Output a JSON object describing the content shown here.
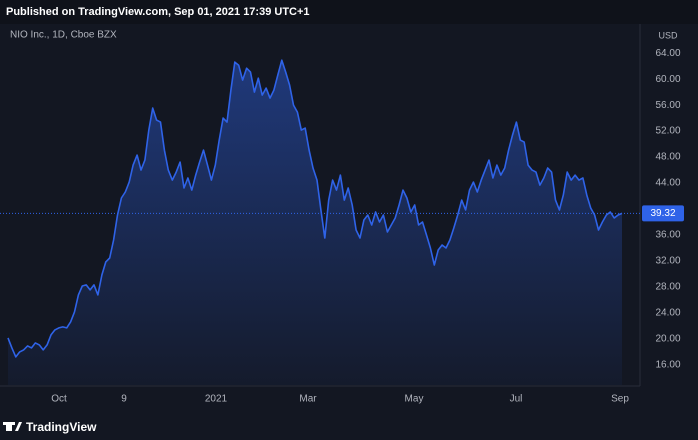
{
  "header": "Published on TradingView.com, Sep 01, 2021 17:39 UTC+1",
  "footer": "TradingView",
  "chart_data": {
    "type": "area",
    "title": "NIO Inc., 1D, Cboe BZX",
    "currency": "USD",
    "color": "#2f63e8",
    "grid": false,
    "ylim": [
      12.9,
      68.8
    ],
    "yticks": [
      {
        "value": 16,
        "label": "16.00"
      },
      {
        "value": 20,
        "label": "20.00"
      },
      {
        "value": 24,
        "label": "24.00"
      },
      {
        "value": 28,
        "label": "28.00"
      },
      {
        "value": 32,
        "label": "32.00"
      },
      {
        "value": 36,
        "label": "36.00"
      },
      {
        "value": 44,
        "label": "44.00"
      },
      {
        "value": 48,
        "label": "48.00"
      },
      {
        "value": 52,
        "label": "52.00"
      },
      {
        "value": 56,
        "label": "56.00"
      },
      {
        "value": 60,
        "label": "60.00"
      },
      {
        "value": 64,
        "label": "64.00"
      }
    ],
    "x_labels": [
      "Oct",
      "9",
      "2021",
      "Mar",
      "May",
      "Jul",
      "Sep"
    ],
    "values": [
      20.15,
      18.62,
      17.23,
      18.0,
      18.31,
      18.92,
      18.62,
      19.38,
      19.08,
      18.31,
      19.08,
      20.62,
      21.38,
      21.69,
      21.85,
      21.69,
      22.62,
      24.15,
      26.77,
      28.15,
      28.31,
      27.54,
      28.31,
      26.77,
      29.85,
      31.85,
      32.46,
      35.23,
      39.08,
      41.69,
      42.62,
      44.15,
      46.77,
      48.31,
      46.0,
      47.54,
      52.15,
      55.54,
      53.69,
      53.38,
      49.08,
      46.0,
      44.46,
      45.69,
      47.23,
      43.23,
      44.77,
      42.92,
      45.23,
      47.23,
      49.08,
      46.77,
      44.46,
      46.77,
      50.62,
      54.0,
      53.38,
      58.31,
      62.62,
      62.15,
      59.85,
      61.69,
      61.08,
      58.0,
      60.15,
      57.54,
      58.62,
      57.08,
      58.31,
      60.62,
      62.92,
      61.08,
      59.08,
      56.0,
      54.92,
      52.15,
      52.46,
      49.08,
      46.31,
      44.46,
      39.85,
      35.54,
      41.38,
      44.46,
      42.92,
      45.23,
      41.38,
      43.23,
      40.62,
      36.77,
      35.54,
      38.31,
      39.08,
      37.54,
      39.54,
      38.0,
      39.08,
      36.46,
      37.54,
      38.62,
      40.62,
      42.92,
      41.69,
      39.54,
      40.62,
      37.54,
      38.0,
      36.0,
      34.0,
      31.38,
      33.69,
      34.46,
      34.0,
      35.23,
      37.08,
      39.08,
      41.38,
      39.85,
      42.92,
      44.15,
      42.62,
      44.46,
      46.0,
      47.54,
      44.77,
      46.77,
      45.23,
      46.31,
      49.08,
      51.38,
      53.38,
      50.62,
      50.31,
      46.77,
      46.0,
      45.69,
      43.69,
      44.77,
      46.31,
      45.69,
      41.38,
      39.85,
      42.15,
      45.69,
      44.46,
      45.23,
      44.46,
      44.77,
      42.15,
      40.15,
      39.08,
      36.77,
      38.0,
      39.08,
      39.54,
      38.62,
      39.08,
      39.32
    ]
  }
}
